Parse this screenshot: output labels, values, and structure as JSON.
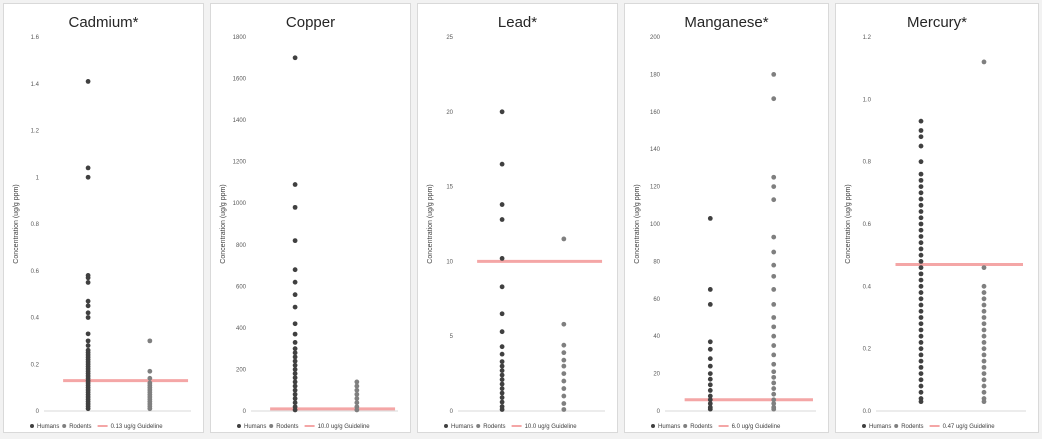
{
  "colors": {
    "points": "#404040",
    "rodent_points": "#7f7f7f",
    "guideline": "#f4a6a6",
    "panel_bg": "#ffffff",
    "page_bg": "#f2f2f2"
  },
  "chart_data": [
    {
      "type": "scatter",
      "title": "Cadmium*",
      "ylabel": "Concentration (ug/g ppm)",
      "ylim": [
        0,
        1.6
      ],
      "yticks": [
        "0",
        "0.2",
        "0.4",
        "0.6",
        "0.8",
        "1",
        "1.2",
        "1.4",
        "1.6"
      ],
      "tick_values": [
        0,
        0.2,
        0.4,
        0.6,
        0.8,
        1,
        1.2,
        1.4,
        1.6
      ],
      "guideline": 0.13,
      "legend": [
        "Humans",
        "Rodents",
        "0.13 ug/g Guideline"
      ],
      "series": [
        {
          "name": "Humans",
          "values": [
            1.41,
            1.04,
            1.0,
            0.58,
            0.57,
            0.55,
            0.47,
            0.45,
            0.42,
            0.4,
            0.33,
            0.3,
            0.28,
            0.26,
            0.25,
            0.24,
            0.23,
            0.22,
            0.21,
            0.2,
            0.19,
            0.18,
            0.17,
            0.16,
            0.15,
            0.14,
            0.13,
            0.12,
            0.11,
            0.1,
            0.09,
            0.08,
            0.07,
            0.06,
            0.05,
            0.04,
            0.03,
            0.02,
            0.01
          ]
        },
        {
          "name": "Rodents",
          "values": [
            0.3,
            0.17,
            0.14,
            0.12,
            0.11,
            0.1,
            0.09,
            0.08,
            0.07,
            0.06,
            0.05,
            0.04,
            0.03,
            0.02,
            0.01
          ]
        }
      ]
    },
    {
      "type": "scatter",
      "title": "Copper",
      "ylabel": "Concentration (ug/g ppm)",
      "ylim": [
        0,
        1800
      ],
      "yticks": [
        "0",
        "200",
        "400",
        "600",
        "800",
        "1000",
        "1200",
        "1400",
        "1600",
        "1800"
      ],
      "tick_values": [
        0,
        200,
        400,
        600,
        800,
        1000,
        1200,
        1400,
        1600,
        1800
      ],
      "guideline": 10,
      "legend": [
        "Humans",
        "Rodents",
        "10.0 ug/g Guideline"
      ],
      "series": [
        {
          "name": "Humans",
          "values": [
            1700,
            1090,
            980,
            820,
            680,
            620,
            560,
            500,
            420,
            370,
            330,
            300,
            280,
            260,
            240,
            220,
            200,
            180,
            160,
            140,
            120,
            100,
            80,
            60,
            40,
            20,
            5
          ]
        },
        {
          "name": "Rodents",
          "values": [
            140,
            120,
            100,
            80,
            60,
            40,
            20,
            5
          ]
        }
      ]
    },
    {
      "type": "scatter",
      "title": "Lead*",
      "ylabel": "Concentration (ug/g ppm)",
      "ylim": [
        0,
        25
      ],
      "yticks": [
        "0",
        "5",
        "10",
        "15",
        "20",
        "25"
      ],
      "tick_values": [
        0,
        5,
        10,
        15,
        20,
        25
      ],
      "guideline": 10,
      "legend": [
        "Humans",
        "Rodents",
        "10.0 ug/g Guideline"
      ],
      "series": [
        {
          "name": "Humans",
          "values": [
            20.0,
            16.5,
            13.8,
            12.8,
            10.2,
            8.3,
            6.5,
            5.3,
            4.3,
            3.8,
            3.3,
            3.0,
            2.7,
            2.4,
            2.1,
            1.8,
            1.5,
            1.2,
            0.9,
            0.6,
            0.3,
            0.1
          ]
        },
        {
          "name": "Rodents",
          "values": [
            11.5,
            5.8,
            4.4,
            3.9,
            3.4,
            3.0,
            2.5,
            2.0,
            1.5,
            1.0,
            0.5,
            0.1
          ]
        }
      ]
    },
    {
      "type": "scatter",
      "title": "Manganese*",
      "ylabel": "Concentration (ug/g ppm)",
      "ylim": [
        0,
        200
      ],
      "yticks": [
        "0",
        "20",
        "40",
        "60",
        "80",
        "100",
        "120",
        "140",
        "160",
        "180",
        "200"
      ],
      "tick_values": [
        0,
        20,
        40,
        60,
        80,
        100,
        120,
        140,
        160,
        180,
        200
      ],
      "guideline": 6,
      "legend": [
        "Humans",
        "Rodents",
        "6.0 ug/g Guideline"
      ],
      "series": [
        {
          "name": "Humans",
          "values": [
            103,
            65,
            57,
            37,
            33,
            28,
            24,
            20,
            17,
            14,
            11,
            8,
            6,
            4,
            2,
            1
          ]
        },
        {
          "name": "Rodents",
          "values": [
            180,
            167,
            125,
            120,
            113,
            93,
            85,
            78,
            72,
            65,
            57,
            50,
            45,
            40,
            35,
            30,
            25,
            21,
            18,
            15,
            12,
            9,
            6,
            4,
            2,
            1
          ]
        }
      ]
    },
    {
      "type": "scatter",
      "title": "Mercury*",
      "ylabel": "Concentration (ug/g ppm)",
      "ylim": [
        0,
        1.2
      ],
      "yticks": [
        "0.0",
        "0.2",
        "0.4",
        "0.6",
        "0.8",
        "1.0",
        "1.2"
      ],
      "tick_values": [
        0,
        0.2,
        0.4,
        0.6,
        0.8,
        1.0,
        1.2
      ],
      "guideline": 0.47,
      "legend": [
        "Humans",
        "Rodents",
        "0.47 ug/g Guideline"
      ],
      "series": [
        {
          "name": "Humans",
          "values": [
            0.93,
            0.9,
            0.88,
            0.85,
            0.8,
            0.76,
            0.74,
            0.72,
            0.7,
            0.68,
            0.66,
            0.64,
            0.62,
            0.6,
            0.58,
            0.56,
            0.54,
            0.52,
            0.5,
            0.48,
            0.46,
            0.44,
            0.42,
            0.4,
            0.38,
            0.36,
            0.34,
            0.32,
            0.3,
            0.28,
            0.26,
            0.24,
            0.22,
            0.2,
            0.18,
            0.16,
            0.14,
            0.12,
            0.1,
            0.08,
            0.06,
            0.04,
            0.03
          ]
        },
        {
          "name": "Rodents",
          "values": [
            1.12,
            0.46,
            0.4,
            0.38,
            0.36,
            0.34,
            0.32,
            0.3,
            0.28,
            0.26,
            0.24,
            0.22,
            0.2,
            0.18,
            0.16,
            0.14,
            0.12,
            0.1,
            0.08,
            0.06,
            0.04,
            0.03
          ]
        }
      ]
    }
  ]
}
